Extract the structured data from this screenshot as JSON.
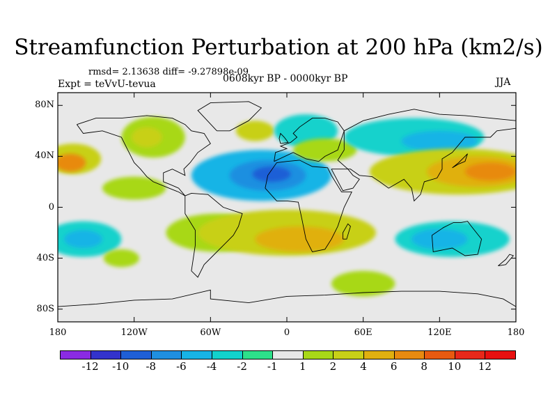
{
  "title": "Streamfunction Perturbation at 200 hPa (km2/s)",
  "stats": "rmsd= 2.13638 diff= -9.27898e-09",
  "expt": "Expt = teVvU-tevua",
  "period": "0608kyr BP - 0000kyr BP",
  "season": "JJA",
  "map": {
    "projection": "cylindrical-equidistant",
    "lon_range": [
      -180,
      180
    ],
    "lat_range": [
      -90,
      90
    ],
    "x_ticks": [
      {
        "lon": -180,
        "label": "180"
      },
      {
        "lon": -120,
        "label": "120W"
      },
      {
        "lon": -60,
        "label": "60W"
      },
      {
        "lon": 0,
        "label": "0"
      },
      {
        "lon": 60,
        "label": "60E"
      },
      {
        "lon": 120,
        "label": "120E"
      },
      {
        "lon": 180,
        "label": "180"
      }
    ],
    "y_ticks": [
      {
        "lat": 80,
        "label": "80N"
      },
      {
        "lat": 40,
        "label": "40N"
      },
      {
        "lat": 0,
        "label": "0"
      },
      {
        "lat": -40,
        "label": "40S"
      },
      {
        "lat": -80,
        "label": "80S"
      }
    ],
    "background_color": "#e8e8e8"
  },
  "colorbar": {
    "labels": [
      "-12",
      "-10",
      "-8",
      "-6",
      "-4",
      "-2",
      "-1",
      "1",
      "2",
      "4",
      "6",
      "8",
      "10",
      "12"
    ],
    "colors": [
      "#8a2be2",
      "#3333cc",
      "#1f5fd6",
      "#1f8fe0",
      "#18b4e6",
      "#12d2cc",
      "#2de08a",
      "#e8e8e8",
      "#a8d818",
      "#c8d018",
      "#e0b010",
      "#e88a10",
      "#e85a10",
      "#e8281a",
      "#e81010"
    ]
  },
  "features": [
    {
      "name": "blob-n-pacific-west",
      "lon": -168,
      "lat": 38,
      "rlon": 22,
      "rlat": 12,
      "color": "#c8d018"
    },
    {
      "name": "blob-n-pacific-west-core",
      "lon": -170,
      "lat": 35,
      "rlon": 12,
      "rlat": 7,
      "color": "#e88a10"
    },
    {
      "name": "blob-n-america",
      "lon": -105,
      "lat": 55,
      "rlon": 25,
      "rlat": 16,
      "color": "#a8d818"
    },
    {
      "name": "blob-n-america-core",
      "lon": -110,
      "lat": 55,
      "rlon": 12,
      "rlat": 8,
      "color": "#c8d018"
    },
    {
      "name": "blob-greenland",
      "lon": -25,
      "lat": 60,
      "rlon": 15,
      "rlat": 8,
      "color": "#c8d018"
    },
    {
      "name": "blob-eurasia-north",
      "lon": 15,
      "lat": 60,
      "rlon": 25,
      "rlat": 13,
      "color": "#12d2cc"
    },
    {
      "name": "blob-atlantic-low",
      "lon": -20,
      "lat": 25,
      "rlon": 55,
      "rlat": 20,
      "color": "#18b4e6"
    },
    {
      "name": "blob-atlantic-low-mid",
      "lon": -15,
      "lat": 25,
      "rlon": 30,
      "rlat": 12,
      "color": "#1f8fe0"
    },
    {
      "name": "blob-atlantic-low-core",
      "lon": -12,
      "lat": 26,
      "rlon": 15,
      "rlat": 6,
      "color": "#1f5fd6"
    },
    {
      "name": "blob-europe-green",
      "lon": 30,
      "lat": 45,
      "rlon": 25,
      "rlat": 9,
      "color": "#a8d818"
    },
    {
      "name": "blob-n-asia-blue",
      "lon": 100,
      "lat": 55,
      "rlon": 55,
      "rlat": 15,
      "color": "#12d2cc"
    },
    {
      "name": "blob-n-asia-blue-core",
      "lon": 120,
      "lat": 52,
      "rlon": 30,
      "rlat": 8,
      "color": "#18b4e6"
    },
    {
      "name": "blob-asia-high",
      "lon": 135,
      "lat": 28,
      "rlon": 70,
      "rlat": 18,
      "color": "#c8d018"
    },
    {
      "name": "blob-asia-high-mid",
      "lon": 150,
      "lat": 28,
      "rlon": 40,
      "rlat": 12,
      "color": "#e0b010"
    },
    {
      "name": "blob-asia-high-core",
      "lon": 160,
      "lat": 28,
      "rlon": 20,
      "rlat": 7,
      "color": "#e88a10"
    },
    {
      "name": "blob-e-pacific-green",
      "lon": -120,
      "lat": 15,
      "rlon": 25,
      "rlat": 9,
      "color": "#a8d818"
    },
    {
      "name": "blob-s-pacific-blue",
      "lon": -160,
      "lat": -25,
      "rlon": 30,
      "rlat": 14,
      "color": "#12d2cc"
    },
    {
      "name": "blob-s-pacific-blue-core",
      "lon": -160,
      "lat": -25,
      "rlon": 15,
      "rlat": 7,
      "color": "#18b4e6"
    },
    {
      "name": "blob-s-america-green",
      "lon": -55,
      "lat": -20,
      "rlon": 40,
      "rlat": 15,
      "color": "#a8d818"
    },
    {
      "name": "blob-s-atlantic-band",
      "lon": 0,
      "lat": -20,
      "rlon": 70,
      "rlat": 18,
      "color": "#c8d018"
    },
    {
      "name": "blob-s-atlantic-band-core",
      "lon": 10,
      "lat": -25,
      "rlon": 35,
      "rlat": 10,
      "color": "#e0b010"
    },
    {
      "name": "blob-s-pacific-small",
      "lon": -130,
      "lat": -40,
      "rlon": 14,
      "rlat": 7,
      "color": "#a8d818"
    },
    {
      "name": "blob-australia-blue",
      "lon": 130,
      "lat": -25,
      "rlon": 45,
      "rlat": 14,
      "color": "#12d2cc"
    },
    {
      "name": "blob-australia-blue-core",
      "lon": 120,
      "lat": -25,
      "rlon": 22,
      "rlat": 8,
      "color": "#18b4e6"
    },
    {
      "name": "blob-s-ocean-green",
      "lon": 60,
      "lat": -60,
      "rlon": 25,
      "rlat": 10,
      "color": "#a8d818"
    }
  ],
  "coastlines": [
    {
      "name": "north-america",
      "points": [
        [
          -165,
          65
        ],
        [
          -150,
          70
        ],
        [
          -130,
          70
        ],
        [
          -110,
          72
        ],
        [
          -90,
          70
        ],
        [
          -80,
          65
        ],
        [
          -75,
          60
        ],
        [
          -65,
          58
        ],
        [
          -60,
          50
        ],
        [
          -70,
          43
        ],
        [
          -76,
          35
        ],
        [
          -81,
          30
        ],
        [
          -80,
          25
        ],
        [
          -90,
          30
        ],
        [
          -97,
          27
        ],
        [
          -97,
          20
        ],
        [
          -92,
          18
        ],
        [
          -85,
          15
        ],
        [
          -80,
          9
        ],
        [
          -85,
          12
        ],
        [
          -95,
          16
        ],
        [
          -105,
          20
        ],
        [
          -110,
          24
        ],
        [
          -115,
          30
        ],
        [
          -120,
          35
        ],
        [
          -125,
          45
        ],
        [
          -130,
          55
        ],
        [
          -145,
          60
        ],
        [
          -160,
          58
        ],
        [
          -165,
          65
        ]
      ]
    },
    {
      "name": "south-america",
      "points": [
        [
          -80,
          9
        ],
        [
          -75,
          11
        ],
        [
          -62,
          10
        ],
        [
          -50,
          0
        ],
        [
          -35,
          -5
        ],
        [
          -38,
          -15
        ],
        [
          -42,
          -22
        ],
        [
          -48,
          -28
        ],
        [
          -58,
          -38
        ],
        [
          -65,
          -45
        ],
        [
          -70,
          -55
        ],
        [
          -75,
          -50
        ],
        [
          -72,
          -30
        ],
        [
          -72,
          -18
        ],
        [
          -80,
          -5
        ],
        [
          -80,
          9
        ]
      ]
    },
    {
      "name": "greenland",
      "points": [
        [
          -55,
          60
        ],
        [
          -45,
          60
        ],
        [
          -30,
          68
        ],
        [
          -20,
          78
        ],
        [
          -30,
          83
        ],
        [
          -60,
          82
        ],
        [
          -70,
          76
        ],
        [
          -55,
          60
        ]
      ]
    },
    {
      "name": "africa",
      "points": [
        [
          -17,
          15
        ],
        [
          -15,
          25
        ],
        [
          -8,
          35
        ],
        [
          0,
          36
        ],
        [
          10,
          37
        ],
        [
          20,
          32
        ],
        [
          32,
          31
        ],
        [
          35,
          25
        ],
        [
          43,
          12
        ],
        [
          51,
          12
        ],
        [
          45,
          0
        ],
        [
          40,
          -15
        ],
        [
          35,
          -25
        ],
        [
          30,
          -33
        ],
        [
          20,
          -35
        ],
        [
          15,
          -25
        ],
        [
          12,
          -10
        ],
        [
          9,
          4
        ],
        [
          0,
          5
        ],
        [
          -8,
          5
        ],
        [
          -17,
          15
        ]
      ]
    },
    {
      "name": "europe",
      "points": [
        [
          -10,
          36
        ],
        [
          -9,
          43
        ],
        [
          0,
          46
        ],
        [
          -5,
          48
        ],
        [
          3,
          51
        ],
        [
          8,
          55
        ],
        [
          5,
          58
        ],
        [
          10,
          63
        ],
        [
          20,
          70
        ],
        [
          30,
          70
        ],
        [
          40,
          67
        ],
        [
          45,
          60
        ],
        [
          40,
          45
        ],
        [
          30,
          40
        ],
        [
          25,
          36
        ],
        [
          15,
          38
        ],
        [
          5,
          43
        ],
        [
          -10,
          36
        ]
      ]
    },
    {
      "name": "asia",
      "points": [
        [
          45,
          60
        ],
        [
          60,
          68
        ],
        [
          80,
          73
        ],
        [
          100,
          77
        ],
        [
          120,
          73
        ],
        [
          140,
          72
        ],
        [
          160,
          70
        ],
        [
          180,
          68
        ],
        [
          180,
          62
        ],
        [
          165,
          60
        ],
        [
          160,
          55
        ],
        [
          140,
          55
        ],
        [
          130,
          43
        ],
        [
          122,
          38
        ],
        [
          122,
          30
        ],
        [
          118,
          23
        ],
        [
          108,
          20
        ],
        [
          105,
          10
        ],
        [
          100,
          5
        ],
        [
          98,
          15
        ],
        [
          92,
          22
        ],
        [
          80,
          15
        ],
        [
          73,
          20
        ],
        [
          67,
          24
        ],
        [
          57,
          25
        ],
        [
          50,
          30
        ],
        [
          48,
          30
        ],
        [
          40,
          37
        ],
        [
          45,
          45
        ],
        [
          45,
          60
        ]
      ]
    },
    {
      "name": "arabia",
      "points": [
        [
          35,
          30
        ],
        [
          44,
          13
        ],
        [
          52,
          15
        ],
        [
          57,
          22
        ],
        [
          52,
          25
        ],
        [
          48,
          30
        ],
        [
          35,
          30
        ]
      ]
    },
    {
      "name": "australia",
      "points": [
        [
          114,
          -22
        ],
        [
          123,
          -16
        ],
        [
          131,
          -12
        ],
        [
          137,
          -12
        ],
        [
          142,
          -11
        ],
        [
          145,
          -15
        ],
        [
          153,
          -25
        ],
        [
          150,
          -37
        ],
        [
          140,
          -38
        ],
        [
          130,
          -32
        ],
        [
          115,
          -35
        ],
        [
          114,
          -22
        ]
      ]
    },
    {
      "name": "japan",
      "points": [
        [
          130,
          31
        ],
        [
          135,
          34
        ],
        [
          140,
          36
        ],
        [
          142,
          42
        ],
        [
          140,
          40
        ],
        [
          135,
          35
        ],
        [
          130,
          31
        ]
      ]
    },
    {
      "name": "uk",
      "points": [
        [
          -5,
          50
        ],
        [
          1,
          51
        ],
        [
          -2,
          55
        ],
        [
          -5,
          58
        ],
        [
          -6,
          54
        ],
        [
          -5,
          50
        ]
      ]
    },
    {
      "name": "madagascar",
      "points": [
        [
          44,
          -25
        ],
        [
          47,
          -25
        ],
        [
          50,
          -15
        ],
        [
          48,
          -13
        ],
        [
          44,
          -20
        ],
        [
          44,
          -25
        ]
      ]
    },
    {
      "name": "new-zealand",
      "points": [
        [
          166,
          -46
        ],
        [
          172,
          -41
        ],
        [
          175,
          -37
        ],
        [
          178,
          -38
        ],
        [
          172,
          -45
        ],
        [
          166,
          -46
        ]
      ]
    },
    {
      "name": "antarctica",
      "points": [
        [
          -180,
          -78
        ],
        [
          -150,
          -76
        ],
        [
          -120,
          -73
        ],
        [
          -90,
          -72
        ],
        [
          -60,
          -65
        ],
        [
          -60,
          -72
        ],
        [
          -30,
          -75
        ],
        [
          0,
          -70
        ],
        [
          30,
          -69
        ],
        [
          60,
          -67
        ],
        [
          90,
          -66
        ],
        [
          120,
          -66
        ],
        [
          150,
          -68
        ],
        [
          170,
          -72
        ],
        [
          180,
          -78
        ]
      ]
    }
  ]
}
